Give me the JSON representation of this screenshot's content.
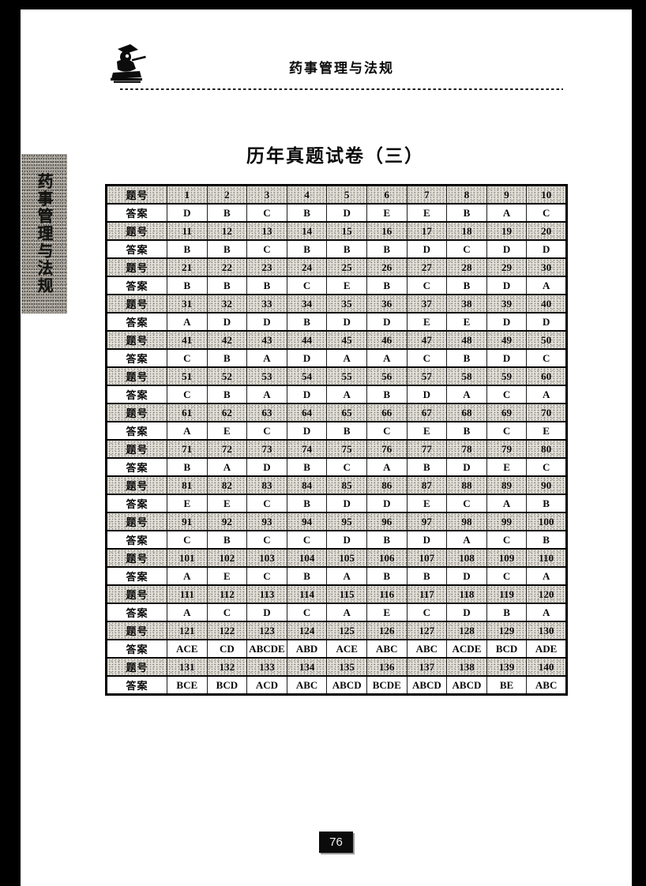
{
  "header": {
    "book_title": "药事管理与法规"
  },
  "sidebar": {
    "tab_text": "药事管理与法规"
  },
  "content": {
    "title": "历年真题试卷（三）"
  },
  "footer": {
    "page_number": "76"
  },
  "icons": {
    "logo": "scholar-mascot-icon"
  },
  "answer_table": {
    "number_label": "题号",
    "answer_label": "答案",
    "rows": [
      {
        "numbers": [
          "1",
          "2",
          "3",
          "4",
          "5",
          "6",
          "7",
          "8",
          "9",
          "10"
        ],
        "answers": [
          "D",
          "B",
          "C",
          "B",
          "D",
          "E",
          "E",
          "B",
          "A",
          "C"
        ]
      },
      {
        "numbers": [
          "11",
          "12",
          "13",
          "14",
          "15",
          "16",
          "17",
          "18",
          "19",
          "20"
        ],
        "answers": [
          "B",
          "B",
          "C",
          "B",
          "B",
          "B",
          "D",
          "C",
          "D",
          "D"
        ]
      },
      {
        "numbers": [
          "21",
          "22",
          "23",
          "24",
          "25",
          "26",
          "27",
          "28",
          "29",
          "30"
        ],
        "answers": [
          "B",
          "B",
          "B",
          "C",
          "E",
          "B",
          "C",
          "B",
          "D",
          "A"
        ]
      },
      {
        "numbers": [
          "31",
          "32",
          "33",
          "34",
          "35",
          "36",
          "37",
          "38",
          "39",
          "40"
        ],
        "answers": [
          "A",
          "D",
          "D",
          "B",
          "D",
          "D",
          "E",
          "E",
          "D",
          "D"
        ]
      },
      {
        "numbers": [
          "41",
          "42",
          "43",
          "44",
          "45",
          "46",
          "47",
          "48",
          "49",
          "50"
        ],
        "answers": [
          "C",
          "B",
          "A",
          "D",
          "A",
          "A",
          "C",
          "B",
          "D",
          "C"
        ]
      },
      {
        "numbers": [
          "51",
          "52",
          "53",
          "54",
          "55",
          "56",
          "57",
          "58",
          "59",
          "60"
        ],
        "answers": [
          "C",
          "B",
          "A",
          "D",
          "A",
          "B",
          "D",
          "A",
          "C",
          "A"
        ]
      },
      {
        "numbers": [
          "61",
          "62",
          "63",
          "64",
          "65",
          "66",
          "67",
          "68",
          "69",
          "70"
        ],
        "answers": [
          "A",
          "E",
          "C",
          "D",
          "B",
          "C",
          "E",
          "B",
          "C",
          "E"
        ]
      },
      {
        "numbers": [
          "71",
          "72",
          "73",
          "74",
          "75",
          "76",
          "77",
          "78",
          "79",
          "80"
        ],
        "answers": [
          "B",
          "A",
          "D",
          "B",
          "C",
          "A",
          "B",
          "D",
          "E",
          "C"
        ]
      },
      {
        "numbers": [
          "81",
          "82",
          "83",
          "84",
          "85",
          "86",
          "87",
          "88",
          "89",
          "90"
        ],
        "answers": [
          "E",
          "E",
          "C",
          "B",
          "D",
          "D",
          "E",
          "C",
          "A",
          "B"
        ]
      },
      {
        "numbers": [
          "91",
          "92",
          "93",
          "94",
          "95",
          "96",
          "97",
          "98",
          "99",
          "100"
        ],
        "answers": [
          "C",
          "B",
          "C",
          "C",
          "D",
          "B",
          "D",
          "A",
          "C",
          "B"
        ]
      },
      {
        "numbers": [
          "101",
          "102",
          "103",
          "104",
          "105",
          "106",
          "107",
          "108",
          "109",
          "110"
        ],
        "answers": [
          "A",
          "E",
          "C",
          "B",
          "A",
          "B",
          "B",
          "D",
          "C",
          "A"
        ]
      },
      {
        "numbers": [
          "111",
          "112",
          "113",
          "114",
          "115",
          "116",
          "117",
          "118",
          "119",
          "120"
        ],
        "answers": [
          "A",
          "C",
          "D",
          "C",
          "A",
          "E",
          "C",
          "D",
          "B",
          "A"
        ]
      },
      {
        "numbers": [
          "121",
          "122",
          "123",
          "124",
          "125",
          "126",
          "127",
          "128",
          "129",
          "130"
        ],
        "answers": [
          "ACE",
          "CD",
          "ABCDE",
          "ABD",
          "ACE",
          "ABC",
          "ABC",
          "ACDE",
          "BCD",
          "ADE"
        ]
      },
      {
        "numbers": [
          "131",
          "132",
          "133",
          "134",
          "135",
          "136",
          "137",
          "138",
          "139",
          "140"
        ],
        "answers": [
          "BCE",
          "BCD",
          "ACD",
          "ABC",
          "ABCD",
          "BCDE",
          "ABCD",
          "ABCD",
          "BE",
          "ABC"
        ]
      }
    ]
  }
}
